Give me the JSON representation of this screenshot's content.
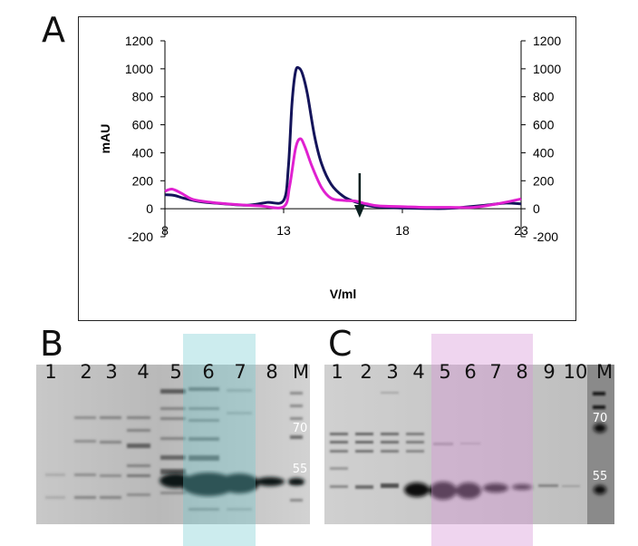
{
  "figure": {
    "panel_a": "A",
    "panel_b": "B",
    "panel_c": "C",
    "gel_b": {
      "lanes": [
        "1",
        "2",
        "3",
        "4",
        "5",
        "6",
        "7",
        "8",
        "M"
      ],
      "markers": [
        "70",
        "55"
      ]
    },
    "gel_c": {
      "lanes": [
        "1",
        "2",
        "3",
        "4",
        "5",
        "6",
        "7",
        "8",
        "9",
        "10",
        "M"
      ],
      "markers": [
        "70",
        "55"
      ]
    }
  },
  "chart_data": {
    "type": "line",
    "xlabel": "V/ml",
    "ylabel": "mAU",
    "xlim": [
      8,
      23
    ],
    "ylim": [
      -200,
      1200
    ],
    "x_ticks": [
      8,
      13,
      18,
      23
    ],
    "y_ticks": [
      -200,
      0,
      200,
      400,
      600,
      800,
      1000,
      1200
    ],
    "right_axis": true,
    "grid": false,
    "annotation": "downward arrow at about 16.2 ml, pointing to a shoulder after the main peak",
    "series": [
      {
        "color": "#14145a",
        "x": [
          8,
          8.4,
          8.8,
          9.5,
          10.5,
          11.5,
          12.3,
          13.0,
          13.2,
          13.35,
          13.5,
          13.65,
          13.8,
          14.0,
          14.3,
          14.6,
          15.0,
          15.5,
          16.0,
          16.5,
          17.0,
          18.0,
          19.0,
          20.0,
          21.5,
          22.3,
          23.0
        ],
        "values": [
          100,
          95,
          75,
          50,
          35,
          25,
          45,
          60,
          300,
          750,
          980,
          1005,
          960,
          820,
          520,
          320,
          175,
          90,
          50,
          25,
          12,
          5,
          2,
          3,
          25,
          40,
          35
        ]
      },
      {
        "color": "#e020d0",
        "x": [
          8,
          8.3,
          8.7,
          9.2,
          10.0,
          11.0,
          12.0,
          13.0,
          13.25,
          13.5,
          13.7,
          13.9,
          14.2,
          14.6,
          15.0,
          15.5,
          16.0,
          16.5,
          17.0,
          18.0,
          19.0,
          20.0,
          21.0,
          22.0,
          23.0
        ],
        "values": [
          125,
          140,
          110,
          65,
          45,
          30,
          20,
          15,
          160,
          430,
          500,
          440,
          300,
          150,
          75,
          60,
          55,
          35,
          20,
          15,
          10,
          10,
          10,
          35,
          70
        ]
      }
    ]
  }
}
